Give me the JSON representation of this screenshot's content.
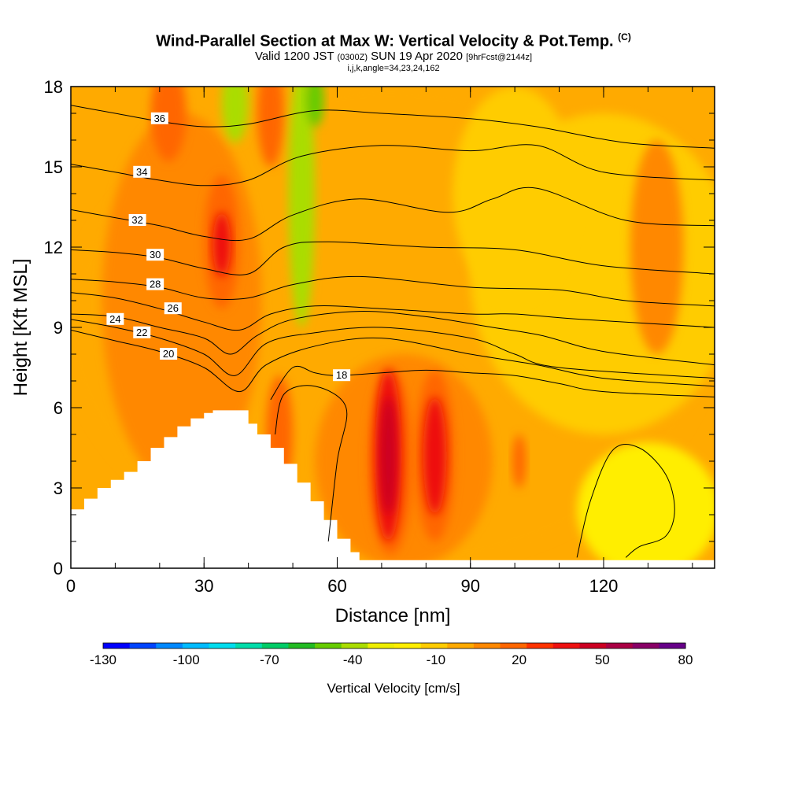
{
  "title": {
    "main": "Wind-Parallel Section at Max W: Vertical Velocity & Pot.Temp.",
    "copyright": "(C)",
    "valid_prefix": "Valid 1200 JST",
    "valid_utc": "(0300Z)",
    "valid_date": "SUN 19 Apr 2020",
    "forecast": "[9hrFcst@2144z]",
    "params": "i,j,k,angle=34,23,24,162"
  },
  "chart_data": {
    "type": "heatmap",
    "xlabel": "Distance [nm]",
    "ylabel": "Height [Kft MSL]",
    "xlim": [
      0,
      145
    ],
    "ylim": [
      0,
      18
    ],
    "xticks": [
      0,
      30,
      60,
      90,
      120
    ],
    "yticks": [
      0,
      3,
      6,
      9,
      12,
      15,
      18
    ],
    "terrain": [
      [
        0,
        2.2
      ],
      [
        3,
        2.6
      ],
      [
        6,
        3.0
      ],
      [
        9,
        3.3
      ],
      [
        12,
        3.6
      ],
      [
        15,
        4.0
      ],
      [
        18,
        4.5
      ],
      [
        21,
        4.9
      ],
      [
        24,
        5.3
      ],
      [
        27,
        5.6
      ],
      [
        30,
        5.8
      ],
      [
        32,
        5.9
      ],
      [
        38,
        5.9
      ],
      [
        40,
        5.4
      ],
      [
        42,
        5.0
      ],
      [
        45,
        4.5
      ],
      [
        48,
        3.9
      ],
      [
        51,
        3.2
      ],
      [
        54,
        2.5
      ],
      [
        57,
        1.8
      ],
      [
        60,
        1.1
      ],
      [
        63,
        0.6
      ],
      [
        65,
        0.3
      ],
      [
        145,
        0.3
      ]
    ],
    "colorbar": {
      "title": "Vertical Velocity [cm/s]",
      "tick_labels": [
        "-130",
        "-100",
        "-70",
        "-40",
        "-10",
        "20",
        "50",
        "80"
      ],
      "tick_values": [
        -130,
        -100,
        -70,
        -40,
        -10,
        20,
        50,
        80
      ],
      "colors": [
        "#0000ff",
        "#0044ff",
        "#0088ff",
        "#00bbff",
        "#00ddee",
        "#00ddaa",
        "#00cc66",
        "#22bb22",
        "#66cc00",
        "#aadd00",
        "#eeee00",
        "#ffee00",
        "#ffcc00",
        "#ffaa00",
        "#ff8800",
        "#ff6600",
        "#ff3300",
        "#ee1111",
        "#cc0022",
        "#aa0044",
        "#880066",
        "#660088"
      ]
    },
    "velocity_regions": [
      {
        "value": -5,
        "cx": 72,
        "cy": 9,
        "rx": 73,
        "ry": 9
      },
      {
        "value": -15,
        "cx": 120,
        "cy": 11,
        "rx": 30,
        "ry": 6
      },
      {
        "value": -10,
        "cx": 100,
        "cy": 14,
        "rx": 14,
        "ry": 4
      },
      {
        "value": -20,
        "cx": 130,
        "cy": 2.2,
        "rx": 16,
        "ry": 2.5
      },
      {
        "value": 10,
        "cx": 25,
        "cy": 10,
        "rx": 18,
        "ry": 7
      },
      {
        "value": 10,
        "cx": 75,
        "cy": 4,
        "rx": 20,
        "ry": 4
      },
      {
        "value": 20,
        "cx": 34,
        "cy": 12.2,
        "rx": 4,
        "ry": 2.5
      },
      {
        "value": 35,
        "cx": 34,
        "cy": 12.1,
        "rx": 2,
        "ry": 1.2
      },
      {
        "value": 20,
        "cx": 22,
        "cy": 17,
        "rx": 4,
        "ry": 1.8
      },
      {
        "value": 20,
        "cx": 45,
        "cy": 17,
        "rx": 3,
        "ry": 2
      },
      {
        "value": -40,
        "cx": 37,
        "cy": 17.4,
        "rx": 3,
        "ry": 1.5
      },
      {
        "value": -35,
        "cx": 52,
        "cy": 14,
        "rx": 3,
        "ry": 5
      },
      {
        "value": -45,
        "cx": 55,
        "cy": 17.5,
        "rx": 2,
        "ry": 1
      },
      {
        "value": 20,
        "cx": 47,
        "cy": 5,
        "rx": 3,
        "ry": 2.2
      },
      {
        "value": 20,
        "cx": 72,
        "cy": 4,
        "rx": 5,
        "ry": 3.5
      },
      {
        "value": 35,
        "cx": 71.5,
        "cy": 4.2,
        "rx": 3,
        "ry": 3.2
      },
      {
        "value": 45,
        "cx": 71.5,
        "cy": 4.2,
        "rx": 1.8,
        "ry": 2.2
      },
      {
        "value": 20,
        "cx": 82,
        "cy": 4.2,
        "rx": 4.5,
        "ry": 3.2
      },
      {
        "value": 35,
        "cx": 82,
        "cy": 4.2,
        "rx": 2.6,
        "ry": 2.2
      },
      {
        "value": 20,
        "cx": 101,
        "cy": 4,
        "rx": 1.5,
        "ry": 1
      },
      {
        "value": 10,
        "cx": 132,
        "cy": 12,
        "rx": 6,
        "ry": 4
      }
    ],
    "theta_contours": [
      {
        "label": "18",
        "label_at": [
          61,
          7.2
        ],
        "points": [
          [
            45,
            6.3
          ],
          [
            50,
            7.5
          ],
          [
            55,
            7.3
          ],
          [
            60,
            7.2
          ],
          [
            70,
            7.3
          ],
          [
            80,
            7.4
          ],
          [
            90,
            7.3
          ],
          [
            100,
            7.2
          ],
          [
            110,
            6.9
          ],
          [
            120,
            6.6
          ],
          [
            145,
            6.4
          ]
        ]
      },
      {
        "label": "20",
        "label_at": [
          22,
          8.0
        ],
        "points": [
          [
            0,
            8.9
          ],
          [
            10,
            8.5
          ],
          [
            20,
            8.1
          ],
          [
            30,
            7.5
          ],
          [
            38,
            6.6
          ],
          [
            44,
            7.6
          ],
          [
            55,
            8.3
          ],
          [
            70,
            8.6
          ],
          [
            90,
            8.0
          ],
          [
            105,
            7.6
          ],
          [
            120,
            7.1
          ],
          [
            145,
            6.8
          ]
        ]
      },
      {
        "label": "22",
        "label_at": [
          16,
          8.8
        ],
        "points": [
          [
            0,
            9.3
          ],
          [
            10,
            9.0
          ],
          [
            20,
            8.6
          ],
          [
            30,
            8.0
          ],
          [
            37,
            7.2
          ],
          [
            44,
            8.4
          ],
          [
            55,
            8.8
          ],
          [
            70,
            9.0
          ],
          [
            90,
            8.6
          ],
          [
            100,
            8.0
          ],
          [
            110,
            7.5
          ],
          [
            145,
            7.1
          ]
        ]
      },
      {
        "label": "24",
        "label_at": [
          10,
          9.3
        ],
        "points": [
          [
            0,
            9.5
          ],
          [
            10,
            9.4
          ],
          [
            20,
            9.0
          ],
          [
            30,
            8.6
          ],
          [
            36,
            8.0
          ],
          [
            42,
            8.7
          ],
          [
            50,
            9.3
          ],
          [
            65,
            9.6
          ],
          [
            80,
            9.4
          ],
          [
            95,
            9.0
          ],
          [
            106,
            8.7
          ],
          [
            120,
            8.1
          ],
          [
            145,
            7.6
          ]
        ]
      },
      {
        "label": "26",
        "label_at": [
          23,
          9.7
        ],
        "points": [
          [
            0,
            10.3
          ],
          [
            10,
            10.1
          ],
          [
            20,
            9.7
          ],
          [
            30,
            9.2
          ],
          [
            38,
            8.9
          ],
          [
            45,
            9.5
          ],
          [
            55,
            9.8
          ],
          [
            70,
            9.7
          ],
          [
            90,
            9.5
          ],
          [
            100,
            9.5
          ],
          [
            115,
            9.3
          ],
          [
            145,
            9.0
          ]
        ]
      },
      {
        "label": "28",
        "label_at": [
          19,
          10.6
        ],
        "points": [
          [
            0,
            10.8
          ],
          [
            10,
            10.7
          ],
          [
            20,
            10.5
          ],
          [
            30,
            10.1
          ],
          [
            40,
            10.1
          ],
          [
            50,
            10.6
          ],
          [
            65,
            10.9
          ],
          [
            90,
            10.5
          ],
          [
            110,
            10.4
          ],
          [
            125,
            10.0
          ],
          [
            145,
            9.8
          ]
        ]
      },
      {
        "label": "30",
        "label_at": [
          19,
          11.7
        ],
        "points": [
          [
            0,
            11.9
          ],
          [
            10,
            11.8
          ],
          [
            20,
            11.6
          ],
          [
            30,
            11.2
          ],
          [
            40,
            11.0
          ],
          [
            48,
            12.0
          ],
          [
            58,
            12.2
          ],
          [
            80,
            12.0
          ],
          [
            100,
            11.9
          ],
          [
            120,
            11.3
          ],
          [
            145,
            11.0
          ]
        ]
      },
      {
        "label": "32",
        "label_at": [
          15,
          13.0
        ],
        "points": [
          [
            0,
            13.4
          ],
          [
            10,
            13.1
          ],
          [
            20,
            12.8
          ],
          [
            30,
            12.4
          ],
          [
            40,
            12.3
          ],
          [
            50,
            13.2
          ],
          [
            65,
            13.8
          ],
          [
            85,
            13.3
          ],
          [
            95,
            13.8
          ],
          [
            105,
            14.2
          ],
          [
            125,
            13.0
          ],
          [
            145,
            12.8
          ]
        ]
      },
      {
        "label": "34",
        "label_at": [
          16,
          14.8
        ],
        "points": [
          [
            0,
            15.1
          ],
          [
            10,
            14.8
          ],
          [
            20,
            14.5
          ],
          [
            30,
            14.3
          ],
          [
            40,
            14.5
          ],
          [
            52,
            15.4
          ],
          [
            70,
            15.8
          ],
          [
            90,
            15.6
          ],
          [
            105,
            15.8
          ],
          [
            120,
            14.8
          ],
          [
            145,
            14.5
          ]
        ]
      },
      {
        "label": "36",
        "label_at": [
          20,
          16.8
        ],
        "points": [
          [
            0,
            17.3
          ],
          [
            10,
            17.0
          ],
          [
            20,
            16.7
          ],
          [
            30,
            16.5
          ],
          [
            40,
            16.6
          ],
          [
            55,
            17.1
          ],
          [
            70,
            17.0
          ],
          [
            90,
            16.8
          ],
          [
            105,
            16.5
          ],
          [
            125,
            15.9
          ],
          [
            145,
            15.7
          ]
        ]
      },
      {
        "label": "",
        "label_at": null,
        "points": [
          [
            46,
            5.0
          ],
          [
            48,
            6.5
          ],
          [
            55,
            6.8
          ],
          [
            62,
            6.0
          ],
          [
            60,
            4.0
          ],
          [
            58,
            1.0
          ]
        ]
      },
      {
        "label": "",
        "label_at": null,
        "points": [
          [
            114,
            0.4
          ],
          [
            117,
            2.5
          ],
          [
            122,
            4.4
          ],
          [
            128,
            4.5
          ],
          [
            134,
            3.5
          ],
          [
            136,
            2.2
          ],
          [
            134,
            1.2
          ],
          [
            128,
            0.8
          ],
          [
            125,
            0.4
          ]
        ]
      }
    ]
  }
}
